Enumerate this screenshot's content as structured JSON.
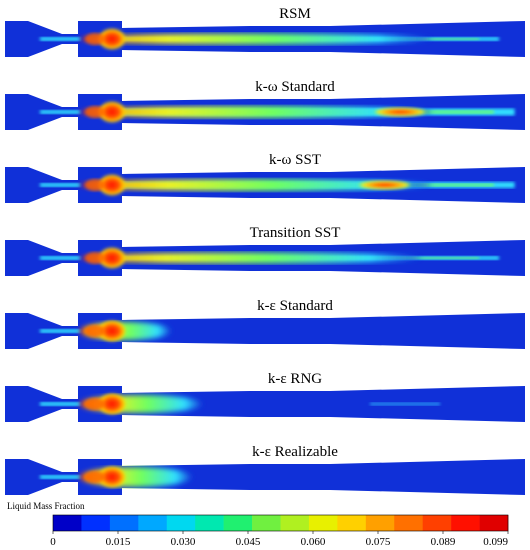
{
  "panels": [
    {
      "title": "RSM",
      "core_length": 0.82,
      "core_width": 7,
      "tail": 0.95,
      "tail_width": 4,
      "hot_spot": null
    },
    {
      "title": "k-ω Standard",
      "core_length": 0.82,
      "core_width": 8,
      "tail": 0.98,
      "tail_width": 7,
      "hot_spot": 0.76
    },
    {
      "title": "k-ω SST",
      "core_length": 0.82,
      "core_width": 8,
      "tail": 0.98,
      "tail_width": 6,
      "hot_spot": 0.73
    },
    {
      "title": "Transition SST",
      "core_length": 0.8,
      "core_width": 7,
      "tail": 0.95,
      "tail_width": 4,
      "hot_spot": null
    },
    {
      "title": "k-ε Standard",
      "core_length": 0.32,
      "core_width": 14,
      "tail": 0.0,
      "tail_width": 0,
      "hot_spot": null
    },
    {
      "title": "k-ε RNG",
      "core_length": 0.38,
      "core_width": 14,
      "tail": 0.0,
      "tail_width": 0,
      "hot_spot": null,
      "faint_streak": true
    },
    {
      "title": "k-ε Realizable",
      "core_length": 0.36,
      "core_width": 16,
      "tail": 0.0,
      "tail_width": 0,
      "hot_spot": null
    }
  ],
  "legend": {
    "title": "Liquid Mass Fraction",
    "ticks": [
      "0",
      "0.015",
      "0.030",
      "0.045",
      "0.060",
      "0.075",
      "0.089",
      "0.099"
    ],
    "colors": [
      "#0000c8",
      "#0030ff",
      "#0070ff",
      "#00a8ff",
      "#00d8f0",
      "#00e8b0",
      "#20f070",
      "#70f040",
      "#b0f020",
      "#e8f000",
      "#ffd000",
      "#ffa000",
      "#ff7000",
      "#ff4000",
      "#ff1000",
      "#e00000"
    ]
  },
  "colors": {
    "background": "#1030d8",
    "jet_cyan": "#30e0ff",
    "jet_green": "#70ff60",
    "jet_yellow": "#f0f020",
    "jet_red": "#ff2000"
  }
}
